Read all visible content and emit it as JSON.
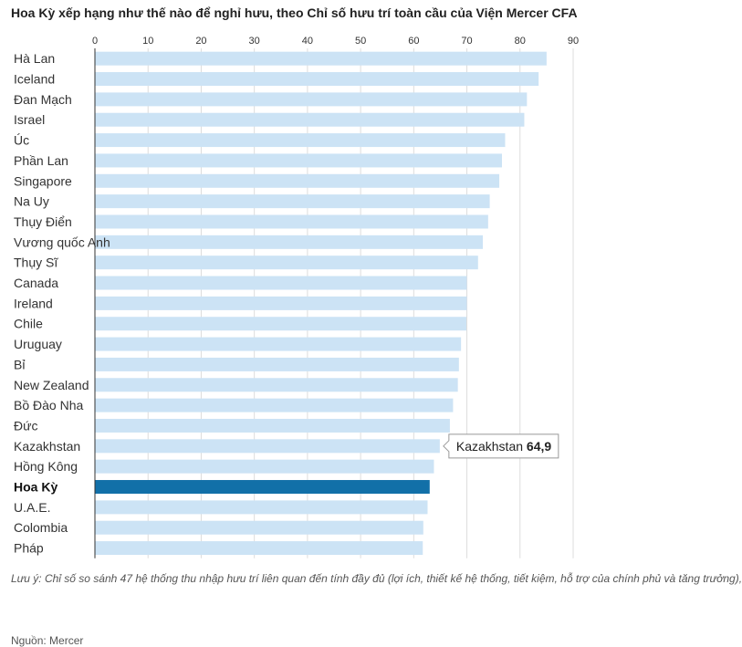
{
  "title": "Hoa Kỳ xếp hạng như thế nào để nghỉ hưu, theo Chỉ số hưu trí toàn cầu của Viện Mercer CFA",
  "note": "Lưu ý: Chỉ số so sánh 47 hệ thống thu nhập hưu trí liên quan đến tính đầy đủ (lợi ích, thiết kế hệ thống, tiết kiệm, hỗ trợ của chính phủ và tăng trưởng),",
  "source": "Nguồn: Mercer",
  "colors": {
    "bar": "#cce3f5",
    "highlight": "#1270a8",
    "axis": "#333333",
    "grid": "#dddddd"
  },
  "tooltip": {
    "label": "Kazakhstan",
    "value": "64,9"
  },
  "chart_data": {
    "type": "bar",
    "orientation": "horizontal",
    "title": "Hoa Kỳ xếp hạng như thế nào để nghỉ hưu, theo Chỉ số hưu trí toàn cầu của Viện Mercer CFA",
    "xlim": [
      0,
      90
    ],
    "xticks": [
      0,
      10,
      20,
      30,
      40,
      50,
      60,
      70,
      80,
      90
    ],
    "grid": true,
    "highlight": "Hoa Kỳ",
    "categories": [
      "Hà Lan",
      "Iceland",
      "Đan Mạch",
      "Israel",
      "Úc",
      "Phần Lan",
      "Singapore",
      "Na Uy",
      "Thụy Điển",
      "Vương quốc Anh",
      "Thụy Sĩ",
      "Canada",
      "Ireland",
      "Chile",
      "Uruguay",
      "Bỉ",
      "New Zealand",
      "Bồ Đào Nha",
      "Đức",
      "Kazakhstan",
      "Hồng Kông",
      "Hoa Kỳ",
      "U.A.E.",
      "Colombia",
      "Pháp"
    ],
    "values": [
      85.0,
      83.5,
      81.3,
      80.8,
      77.2,
      76.6,
      76.1,
      74.3,
      74.0,
      73.0,
      72.1,
      70.0,
      70.0,
      69.9,
      68.9,
      68.5,
      68.3,
      67.4,
      66.8,
      64.9,
      63.8,
      63.0,
      62.6,
      61.8,
      61.7
    ]
  }
}
